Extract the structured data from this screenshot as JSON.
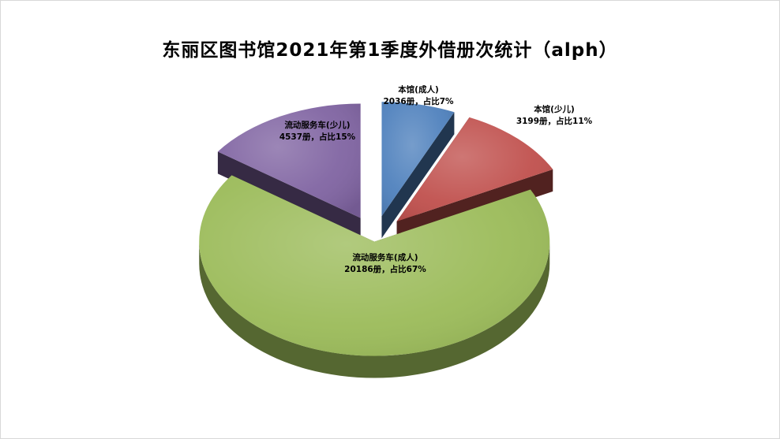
{
  "chart_data": {
    "type": "pie",
    "title": "东丽区图书馆2021年第1季度外借册次统计（alph）",
    "slices": [
      {
        "name": "本馆(成人)",
        "value": 2036,
        "percent": 7,
        "label": "2036册，占比7%",
        "color": "#4f81bd"
      },
      {
        "name": "本馆(少儿)",
        "value": 3199,
        "percent": 11,
        "label": "3199册，占比11%",
        "color": "#c0504d"
      },
      {
        "name": "流动服务车(成人)",
        "value": 20186,
        "percent": 67,
        "label": "20186册，占比67%",
        "color": "#9bbb59"
      },
      {
        "name": "流动服务车(少儿)",
        "value": 4537,
        "percent": 15,
        "label": "4537册，占比15%",
        "color": "#8064a2"
      }
    ],
    "style": "3d-exploded",
    "legend": "none"
  }
}
